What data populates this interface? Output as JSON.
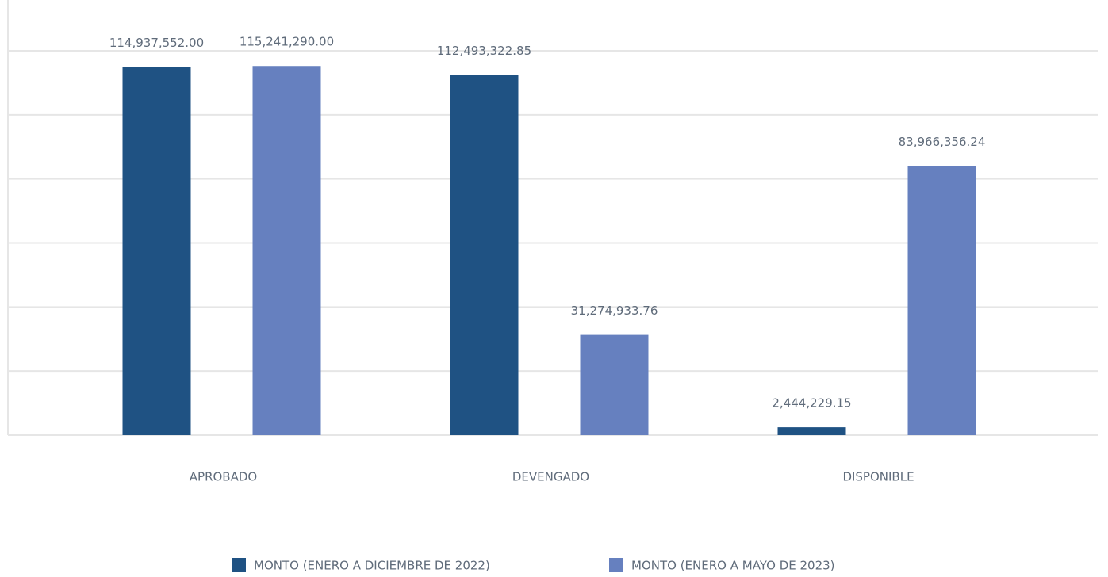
{
  "chart_data": {
    "type": "bar",
    "categories": [
      "APROBADO",
      "DEVENGADO",
      "DISPONIBLE"
    ],
    "series": [
      {
        "name": "MONTO (ENERO A DICIEMBRE DE 2022)",
        "color": "#1f5283",
        "values": [
          114937552.0,
          112493322.85,
          2444229.15
        ],
        "value_labels": [
          "114,937,552.00",
          "112,493,322.85",
          "2,444,229.15"
        ]
      },
      {
        "name": "MONTO (ENERO A MAYO DE 2023)",
        "color": "#6680bf",
        "values": [
          115241290.0,
          31274933.76,
          83966356.24
        ],
        "value_labels": [
          "115,241,290.00",
          "31,274,933.76",
          "83,966,356.24"
        ]
      }
    ],
    "ylim": [
      0,
      120000000
    ],
    "yticks": [
      0,
      20000000,
      40000000,
      60000000,
      80000000,
      100000000,
      120000000
    ],
    "grid": true,
    "legend": "bottom"
  }
}
